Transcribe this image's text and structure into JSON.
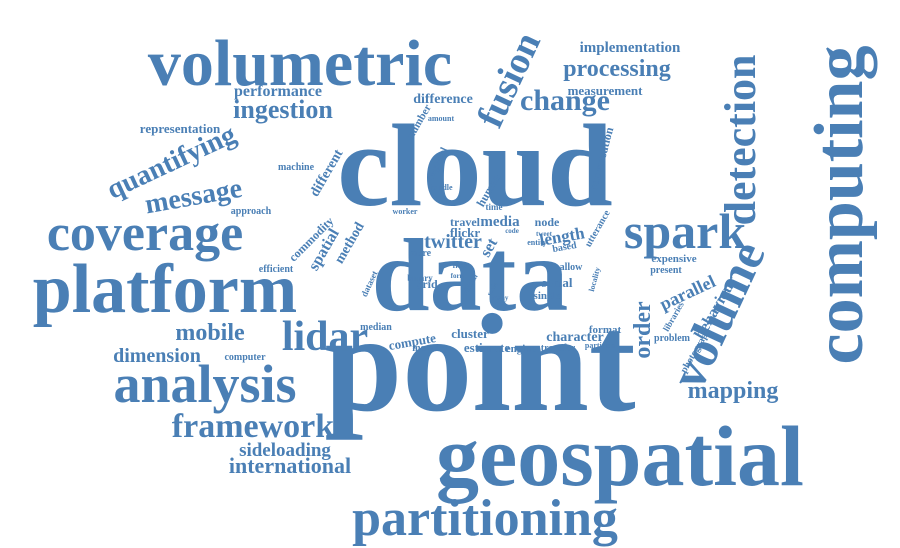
{
  "word_color": "#4a7fb5",
  "background_color": "#ffffff",
  "words": [
    {
      "text": "point"
    },
    {
      "text": "cloud"
    },
    {
      "text": "data"
    },
    {
      "text": "geospatial"
    },
    {
      "text": "computing"
    },
    {
      "text": "volumetric"
    },
    {
      "text": "platform"
    },
    {
      "text": "coverage"
    },
    {
      "text": "analysis"
    },
    {
      "text": "spark"
    },
    {
      "text": "partitioning"
    },
    {
      "text": "volume"
    },
    {
      "text": "detection"
    },
    {
      "text": "lidar"
    },
    {
      "text": "framework"
    },
    {
      "text": "fusion"
    },
    {
      "text": "change"
    },
    {
      "text": "processing"
    },
    {
      "text": "quantifying"
    },
    {
      "text": "message"
    },
    {
      "text": "ingestion"
    },
    {
      "text": "mobile"
    },
    {
      "text": "international"
    },
    {
      "text": "mapping"
    },
    {
      "text": "dimension"
    },
    {
      "text": "sideloading"
    },
    {
      "text": "order"
    },
    {
      "text": "parallel"
    },
    {
      "text": "performance"
    },
    {
      "text": "implementation"
    },
    {
      "text": "representation"
    },
    {
      "text": "twitter"
    },
    {
      "text": "behaviour"
    },
    {
      "text": "length"
    },
    {
      "text": "measurement"
    },
    {
      "text": "difference"
    },
    {
      "text": "character"
    },
    {
      "text": "estimate"
    },
    {
      "text": "cluster"
    },
    {
      "text": "compute"
    },
    {
      "text": "media"
    },
    {
      "text": "set"
    },
    {
      "text": "spatial"
    },
    {
      "text": "method"
    },
    {
      "text": "different"
    },
    {
      "text": "human"
    },
    {
      "text": "social"
    },
    {
      "text": "single"
    },
    {
      "text": "number"
    },
    {
      "text": "commodity"
    },
    {
      "text": "conversation"
    },
    {
      "text": "machine"
    },
    {
      "text": "approach"
    },
    {
      "text": "regional"
    },
    {
      "text": "flickr"
    },
    {
      "text": "travel"
    },
    {
      "text": "node"
    },
    {
      "text": "expensive"
    },
    {
      "text": "present"
    },
    {
      "text": "allow"
    },
    {
      "text": "based"
    },
    {
      "text": "utterance"
    },
    {
      "text": "format"
    },
    {
      "text": "engine"
    },
    {
      "text": "transfer"
    },
    {
      "text": "memory"
    },
    {
      "text": "median"
    },
    {
      "text": "computer"
    },
    {
      "text": "problem"
    },
    {
      "text": "photograph"
    },
    {
      "text": "libraries"
    },
    {
      "text": "partition"
    },
    {
      "text": "efficient"
    },
    {
      "text": "dataset"
    },
    {
      "text": "grid"
    },
    {
      "text": "binary"
    },
    {
      "text": "more"
    },
    {
      "text": "amount"
    },
    {
      "text": "worker"
    },
    {
      "text": "handle"
    },
    {
      "text": "time"
    },
    {
      "text": "locality"
    },
    {
      "text": "flow"
    },
    {
      "text": "entity"
    },
    {
      "text": "official"
    },
    {
      "text": "tweet"
    },
    {
      "text": "form"
    },
    {
      "text": "scale"
    },
    {
      "text": "many"
    },
    {
      "text": "code"
    }
  ]
}
